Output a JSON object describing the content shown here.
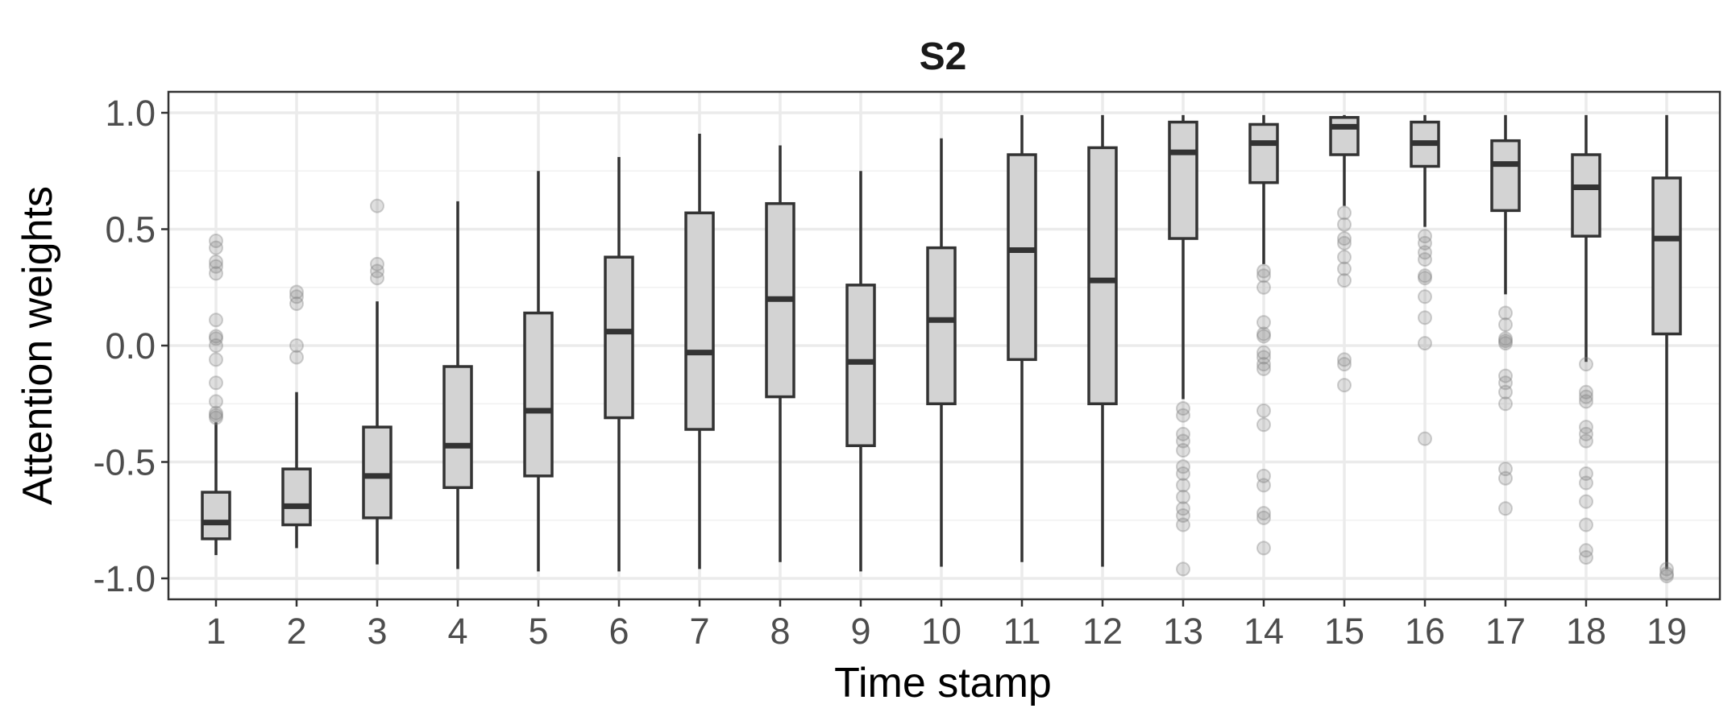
{
  "chart_data": {
    "type": "boxplot",
    "title": "S2",
    "xlabel": "Time stamp",
    "ylabel": "Attention weights",
    "ylim": [
      -1.09,
      1.09
    ],
    "yticks": [
      -1.0,
      -0.5,
      0.0,
      0.5,
      1.0
    ],
    "ytick_labels": [
      "-1.0",
      "-0.5",
      "0.0",
      "0.5",
      "1.0"
    ],
    "grid": true,
    "box_fill": "#d3d3d3",
    "line_color": "#333333",
    "categories": [
      "1",
      "2",
      "3",
      "4",
      "5",
      "6",
      "7",
      "8",
      "9",
      "10",
      "11",
      "12",
      "13",
      "14",
      "15",
      "16",
      "17",
      "18",
      "19"
    ],
    "boxes": [
      {
        "x": "1",
        "whisker_low": -0.9,
        "q1": -0.83,
        "median": -0.76,
        "q3": -0.63,
        "whisker_high": -0.33,
        "outliers": [
          0.45,
          0.42,
          0.36,
          0.34,
          0.31,
          0.11,
          0.04,
          0.03,
          0.0,
          -0.06,
          -0.16,
          -0.24,
          -0.29,
          -0.3,
          -0.31
        ]
      },
      {
        "x": "2",
        "whisker_low": -0.87,
        "q1": -0.77,
        "median": -0.69,
        "q3": -0.53,
        "whisker_high": -0.2,
        "outliers": [
          0.23,
          0.21,
          0.18,
          0.0,
          -0.05
        ]
      },
      {
        "x": "3",
        "whisker_low": -0.94,
        "q1": -0.74,
        "median": -0.56,
        "q3": -0.35,
        "whisker_high": 0.19,
        "outliers": [
          0.6,
          0.35,
          0.32,
          0.29
        ]
      },
      {
        "x": "4",
        "whisker_low": -0.96,
        "q1": -0.61,
        "median": -0.43,
        "q3": -0.09,
        "whisker_high": 0.62,
        "outliers": []
      },
      {
        "x": "5",
        "whisker_low": -0.97,
        "q1": -0.56,
        "median": -0.28,
        "q3": 0.14,
        "whisker_high": 0.75,
        "outliers": []
      },
      {
        "x": "6",
        "whisker_low": -0.97,
        "q1": -0.31,
        "median": 0.06,
        "q3": 0.38,
        "whisker_high": 0.81,
        "outliers": []
      },
      {
        "x": "7",
        "whisker_low": -0.96,
        "q1": -0.36,
        "median": -0.03,
        "q3": 0.57,
        "whisker_high": 0.91,
        "outliers": []
      },
      {
        "x": "8",
        "whisker_low": -0.93,
        "q1": -0.22,
        "median": 0.2,
        "q3": 0.61,
        "whisker_high": 0.86,
        "outliers": []
      },
      {
        "x": "9",
        "whisker_low": -0.97,
        "q1": -0.43,
        "median": -0.07,
        "q3": 0.26,
        "whisker_high": 0.75,
        "outliers": []
      },
      {
        "x": "10",
        "whisker_low": -0.95,
        "q1": -0.25,
        "median": 0.11,
        "q3": 0.42,
        "whisker_high": 0.89,
        "outliers": []
      },
      {
        "x": "11",
        "whisker_low": -0.93,
        "q1": -0.06,
        "median": 0.41,
        "q3": 0.82,
        "whisker_high": 0.99,
        "outliers": []
      },
      {
        "x": "12",
        "whisker_low": -0.95,
        "q1": -0.25,
        "median": 0.28,
        "q3": 0.85,
        "whisker_high": 0.99,
        "outliers": []
      },
      {
        "x": "13",
        "whisker_low": -0.23,
        "q1": 0.46,
        "median": 0.83,
        "q3": 0.96,
        "whisker_high": 0.99,
        "outliers": [
          -0.27,
          -0.3,
          -0.38,
          -0.41,
          -0.45,
          -0.52,
          -0.55,
          -0.6,
          -0.65,
          -0.7,
          -0.73,
          -0.77,
          -0.96
        ]
      },
      {
        "x": "14",
        "whisker_low": 0.35,
        "q1": 0.7,
        "median": 0.87,
        "q3": 0.95,
        "whisker_high": 0.99,
        "outliers": [
          0.32,
          0.3,
          0.25,
          0.1,
          0.05,
          0.04,
          -0.03,
          -0.05,
          -0.08,
          -0.1,
          -0.28,
          -0.34,
          -0.56,
          -0.6,
          -0.72,
          -0.74,
          -0.87
        ]
      },
      {
        "x": "15",
        "whisker_low": 0.6,
        "q1": 0.82,
        "median": 0.94,
        "q3": 0.98,
        "whisker_high": 0.99,
        "outliers": [
          0.57,
          0.52,
          0.46,
          0.44,
          0.38,
          0.33,
          0.28,
          -0.06,
          -0.08,
          -0.17
        ]
      },
      {
        "x": "16",
        "whisker_low": 0.51,
        "q1": 0.77,
        "median": 0.87,
        "q3": 0.96,
        "whisker_high": 0.99,
        "outliers": [
          0.47,
          0.44,
          0.4,
          0.37,
          0.3,
          0.29,
          0.21,
          0.12,
          0.01,
          -0.4
        ]
      },
      {
        "x": "17",
        "whisker_low": 0.22,
        "q1": 0.58,
        "median": 0.78,
        "q3": 0.88,
        "whisker_high": 0.99,
        "outliers": [
          0.14,
          0.09,
          0.03,
          0.02,
          0.01,
          -0.13,
          -0.16,
          -0.2,
          -0.25,
          -0.53,
          -0.57,
          -0.7
        ]
      },
      {
        "x": "18",
        "whisker_low": -0.07,
        "q1": 0.47,
        "median": 0.68,
        "q3": 0.82,
        "whisker_high": 0.99,
        "outliers": [
          -0.08,
          -0.2,
          -0.22,
          -0.24,
          -0.35,
          -0.38,
          -0.41,
          -0.55,
          -0.59,
          -0.67,
          -0.77,
          -0.88,
          -0.91
        ]
      },
      {
        "x": "19",
        "whisker_low": -0.96,
        "q1": 0.05,
        "median": 0.46,
        "q3": 0.72,
        "whisker_high": 0.99,
        "outliers": [
          -0.96,
          -0.98,
          -0.99
        ]
      }
    ]
  }
}
